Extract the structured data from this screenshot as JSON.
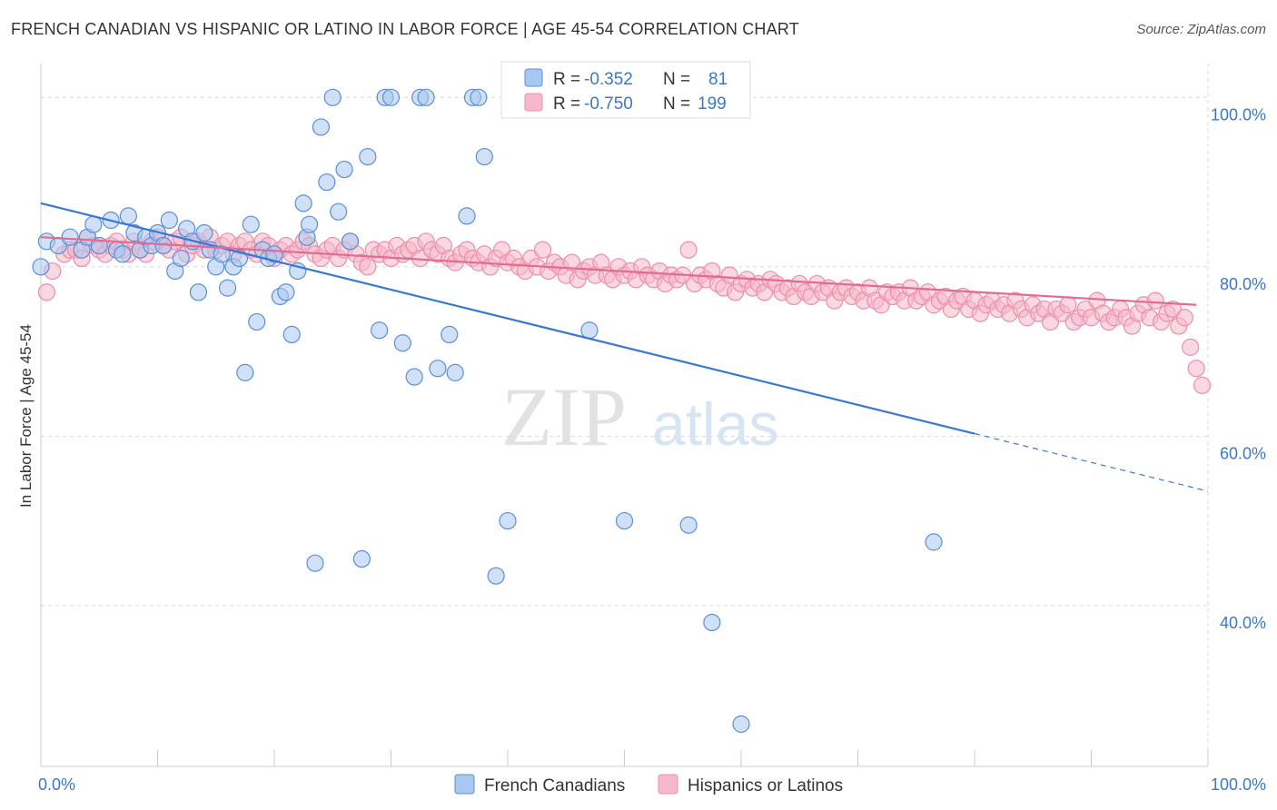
{
  "title": "FRENCH CANADIAN VS HISPANIC OR LATINO IN LABOR FORCE | AGE 45-54 CORRELATION CHART",
  "source": "Source: ZipAtlas.com",
  "watermark": {
    "zip": "ZIP",
    "atlas": "atlas"
  },
  "colors": {
    "blue_fill": "#a9c8f0",
    "blue_stroke": "#5a8fd6",
    "blue_line": "#3a78d0",
    "pink_fill": "#f6b8cb",
    "pink_stroke": "#ea8eab",
    "pink_line": "#e26b92",
    "grid": "#d8d8d8",
    "axis_label": "#3b77c8"
  },
  "legend": {
    "rows": [
      {
        "r_label": "R = ",
        "r_value": "-0.352",
        "n_label": "N = ",
        "n_value": "81"
      },
      {
        "r_label": "R = ",
        "r_value": "-0.750",
        "n_label": "N = ",
        "n_value": "199"
      }
    ]
  },
  "chart_data": {
    "type": "scatter",
    "xlabel": "",
    "ylabel": "In Labor Force | Age 45-54",
    "xlim": [
      0,
      100
    ],
    "ylim": [
      21,
      104
    ],
    "x_tick_labels": [
      "0.0%",
      "100.0%"
    ],
    "y_ticks": [
      100,
      80,
      60,
      40
    ],
    "y_tick_labels": [
      "100.0%",
      "80.0%",
      "60.0%",
      "40.0%"
    ],
    "grid": true,
    "series": [
      {
        "name": "French Canadians",
        "trend": {
          "x0": 0,
          "y0": 87.5,
          "x1": 80,
          "y1": 60.3,
          "dash_to_x": 100,
          "dash_to_y": 53.5
        },
        "points": [
          [
            0.5,
            83
          ],
          [
            1.5,
            82.5
          ],
          [
            2.5,
            83.5
          ],
          [
            3.5,
            82
          ],
          [
            4,
            83.5
          ],
          [
            4.5,
            85
          ],
          [
            5,
            82.5
          ],
          [
            6,
            85.5
          ],
          [
            6.5,
            82
          ],
          [
            7,
            81.5
          ],
          [
            7.5,
            86
          ],
          [
            8,
            84
          ],
          [
            8.5,
            82
          ],
          [
            9,
            83.5
          ],
          [
            9.5,
            82.5
          ],
          [
            10,
            84
          ],
          [
            10.5,
            82.5
          ],
          [
            11,
            85.5
          ],
          [
            11.5,
            79.5
          ],
          [
            12,
            81
          ],
          [
            12.5,
            84.5
          ],
          [
            13,
            83
          ],
          [
            13.5,
            77
          ],
          [
            14,
            84
          ],
          [
            14.5,
            82
          ],
          [
            15,
            80
          ],
          [
            15.5,
            81.5
          ],
          [
            16,
            77.5
          ],
          [
            16.5,
            80
          ],
          [
            17,
            81
          ],
          [
            17.5,
            67.5
          ],
          [
            18,
            85
          ],
          [
            18.5,
            73.5
          ],
          [
            19,
            82
          ],
          [
            19.5,
            81
          ],
          [
            20,
            81.5
          ],
          [
            20.5,
            76.5
          ],
          [
            21,
            77
          ],
          [
            21.5,
            72
          ],
          [
            22,
            79.5
          ],
          [
            22.5,
            87.5
          ],
          [
            22.8,
            83.5
          ],
          [
            23,
            85
          ],
          [
            23.5,
            45
          ],
          [
            24,
            96.5
          ],
          [
            24.5,
            90
          ],
          [
            25,
            100
          ],
          [
            25.5,
            86.5
          ],
          [
            26,
            91.5
          ],
          [
            26.5,
            83
          ],
          [
            27.5,
            45.5
          ],
          [
            28,
            93
          ],
          [
            29,
            72.5
          ],
          [
            29.5,
            100
          ],
          [
            30,
            100
          ],
          [
            31,
            71
          ],
          [
            32,
            67
          ],
          [
            32.5,
            100
          ],
          [
            33,
            100
          ],
          [
            34,
            68
          ],
          [
            35,
            72
          ],
          [
            35.5,
            67.5
          ],
          [
            36.5,
            86
          ],
          [
            37,
            100
          ],
          [
            37.5,
            100
          ],
          [
            38,
            93
          ],
          [
            39,
            43.5
          ],
          [
            40,
            50
          ],
          [
            47,
            72.5
          ],
          [
            50,
            50
          ],
          [
            55.5,
            49.5
          ],
          [
            57.5,
            38
          ],
          [
            58,
            100.5
          ],
          [
            60,
            26
          ],
          [
            76.5,
            47.5
          ],
          [
            0,
            80
          ]
        ]
      },
      {
        "name": "Hispanics or Latinos",
        "trend": {
          "x0": 0,
          "y0": 83.5,
          "x1": 99,
          "y1": 75.5
        },
        "points": [
          [
            0.5,
            77
          ],
          [
            1,
            79.5
          ],
          [
            2,
            81.5
          ],
          [
            2.5,
            82
          ],
          [
            3,
            82
          ],
          [
            3.5,
            81
          ],
          [
            4,
            83.5
          ],
          [
            4.5,
            82.5
          ],
          [
            5,
            82
          ],
          [
            5.5,
            81.5
          ],
          [
            6,
            82.5
          ],
          [
            6.5,
            83
          ],
          [
            7,
            82
          ],
          [
            7.5,
            81.5
          ],
          [
            8,
            83
          ],
          [
            8.5,
            82
          ],
          [
            9,
            81.5
          ],
          [
            9.5,
            83
          ],
          [
            10,
            83.5
          ],
          [
            10.5,
            82.5
          ],
          [
            11,
            82
          ],
          [
            11.5,
            83
          ],
          [
            12,
            83.5
          ],
          [
            12.5,
            81.5
          ],
          [
            13,
            82.5
          ],
          [
            13.5,
            83
          ],
          [
            14,
            82
          ],
          [
            14.5,
            83.5
          ],
          [
            15,
            82
          ],
          [
            15.5,
            82.5
          ],
          [
            16,
            83
          ],
          [
            16.5,
            81.5
          ],
          [
            17,
            82.5
          ],
          [
            17.5,
            83
          ],
          [
            18,
            82
          ],
          [
            18.5,
            81.5
          ],
          [
            19,
            83
          ],
          [
            19.5,
            82.5
          ],
          [
            20,
            81
          ],
          [
            20.5,
            82
          ],
          [
            21,
            82.5
          ],
          [
            21.5,
            81.5
          ],
          [
            22,
            82
          ],
          [
            22.5,
            83
          ],
          [
            23,
            82.5
          ],
          [
            23.5,
            81.5
          ],
          [
            24,
            81
          ],
          [
            24.5,
            82
          ],
          [
            25,
            82.5
          ],
          [
            25.5,
            81
          ],
          [
            26,
            82
          ],
          [
            26.5,
            83
          ],
          [
            27,
            81.5
          ],
          [
            27.5,
            80.5
          ],
          [
            28,
            80
          ],
          [
            28.5,
            82
          ],
          [
            29,
            81.5
          ],
          [
            29.5,
            82
          ],
          [
            30,
            81
          ],
          [
            30.5,
            82.5
          ],
          [
            31,
            81.5
          ],
          [
            31.5,
            82
          ],
          [
            32,
            82.5
          ],
          [
            32.5,
            81
          ],
          [
            33,
            83
          ],
          [
            33.5,
            82
          ],
          [
            34,
            81.5
          ],
          [
            34.5,
            82.5
          ],
          [
            35,
            81
          ],
          [
            35.5,
            80.5
          ],
          [
            36,
            81.5
          ],
          [
            36.5,
            82
          ],
          [
            37,
            81
          ],
          [
            37.5,
            80.5
          ],
          [
            38,
            81.5
          ],
          [
            38.5,
            80
          ],
          [
            39,
            81
          ],
          [
            39.5,
            82
          ],
          [
            40,
            80.5
          ],
          [
            40.5,
            81
          ],
          [
            41,
            80
          ],
          [
            41.5,
            79.5
          ],
          [
            42,
            81
          ],
          [
            42.5,
            80
          ],
          [
            43,
            82
          ],
          [
            43.5,
            79.5
          ],
          [
            44,
            80.5
          ],
          [
            44.5,
            80
          ],
          [
            45,
            79
          ],
          [
            45.5,
            80.5
          ],
          [
            46,
            78.5
          ],
          [
            46.5,
            79.5
          ],
          [
            47,
            80
          ],
          [
            47.5,
            79
          ],
          [
            48,
            80.5
          ],
          [
            48.5,
            79
          ],
          [
            49,
            78.5
          ],
          [
            49.5,
            80
          ],
          [
            50,
            79
          ],
          [
            50.5,
            79.5
          ],
          [
            51,
            78.5
          ],
          [
            51.5,
            80
          ],
          [
            52,
            79
          ],
          [
            52.5,
            78.5
          ],
          [
            53,
            79.5
          ],
          [
            53.5,
            78
          ],
          [
            54,
            79
          ],
          [
            54.5,
            78.5
          ],
          [
            55,
            79
          ],
          [
            55.5,
            82
          ],
          [
            56,
            78
          ],
          [
            56.5,
            79
          ],
          [
            57,
            78.5
          ],
          [
            57.5,
            79.5
          ],
          [
            58,
            78
          ],
          [
            58.5,
            77.5
          ],
          [
            59,
            79
          ],
          [
            59.5,
            77
          ],
          [
            60,
            78
          ],
          [
            60.5,
            78.5
          ],
          [
            61,
            77.5
          ],
          [
            61.5,
            78
          ],
          [
            62,
            77
          ],
          [
            62.5,
            78.5
          ],
          [
            63,
            78
          ],
          [
            63.5,
            77
          ],
          [
            64,
            77.5
          ],
          [
            64.5,
            76.5
          ],
          [
            65,
            78
          ],
          [
            65.5,
            77
          ],
          [
            66,
            76.5
          ],
          [
            66.5,
            78
          ],
          [
            67,
            77
          ],
          [
            67.5,
            77.5
          ],
          [
            68,
            76
          ],
          [
            68.5,
            77
          ],
          [
            69,
            77.5
          ],
          [
            69.5,
            76.5
          ],
          [
            70,
            77
          ],
          [
            70.5,
            76
          ],
          [
            71,
            77.5
          ],
          [
            71.5,
            76
          ],
          [
            72,
            75.5
          ],
          [
            72.5,
            77
          ],
          [
            73,
            76.5
          ],
          [
            73.5,
            77
          ],
          [
            74,
            76
          ],
          [
            74.5,
            77.5
          ],
          [
            75,
            76
          ],
          [
            75.5,
            76.5
          ],
          [
            76,
            77
          ],
          [
            76.5,
            75.5
          ],
          [
            77,
            76
          ],
          [
            77.5,
            76.5
          ],
          [
            78,
            75
          ],
          [
            78.5,
            76
          ],
          [
            79,
            76.5
          ],
          [
            79.5,
            75
          ],
          [
            80,
            76
          ],
          [
            80.5,
            74.5
          ],
          [
            81,
            75.5
          ],
          [
            81.5,
            76
          ],
          [
            82,
            75
          ],
          [
            82.5,
            75.5
          ],
          [
            83,
            74.5
          ],
          [
            83.5,
            76
          ],
          [
            84,
            75
          ],
          [
            84.5,
            74
          ],
          [
            85,
            75.5
          ],
          [
            85.5,
            74.5
          ],
          [
            86,
            75
          ],
          [
            86.5,
            73.5
          ],
          [
            87,
            75
          ],
          [
            87.5,
            74.5
          ],
          [
            88,
            75.5
          ],
          [
            88.5,
            73.5
          ],
          [
            89,
            74
          ],
          [
            89.5,
            75
          ],
          [
            90,
            74
          ],
          [
            90.5,
            76
          ],
          [
            91,
            74.5
          ],
          [
            91.5,
            73.5
          ],
          [
            92,
            74
          ],
          [
            92.5,
            75
          ],
          [
            93,
            74
          ],
          [
            93.5,
            73
          ],
          [
            94,
            74.5
          ],
          [
            94.5,
            75.5
          ],
          [
            95,
            74
          ],
          [
            95.5,
            76
          ],
          [
            96,
            73.5
          ],
          [
            96.5,
            74.5
          ],
          [
            97,
            75
          ],
          [
            97.5,
            73
          ],
          [
            98,
            74
          ],
          [
            98.5,
            70.5
          ],
          [
            99,
            68
          ],
          [
            99.5,
            66
          ]
        ]
      }
    ]
  }
}
